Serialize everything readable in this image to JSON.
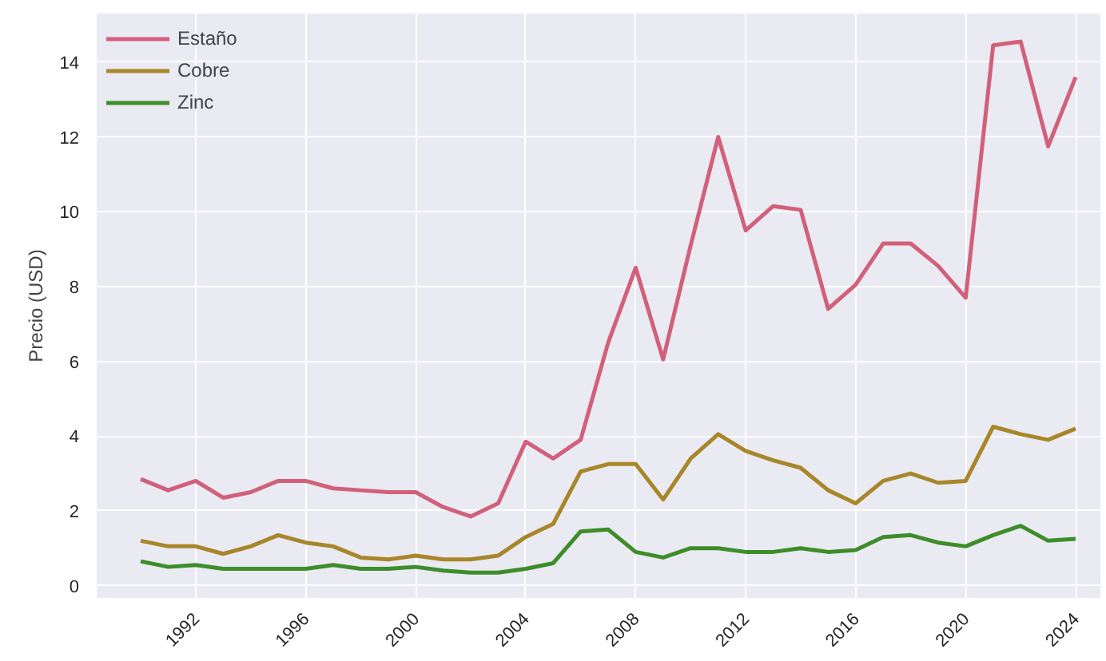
{
  "chart_data": {
    "type": "line",
    "ylabel": "Precio (USD)",
    "x": [
      1990,
      1991,
      1992,
      1993,
      1994,
      1995,
      1996,
      1997,
      1998,
      1999,
      2000,
      2001,
      2002,
      2003,
      2004,
      2005,
      2006,
      2007,
      2008,
      2009,
      2010,
      2011,
      2012,
      2013,
      2014,
      2015,
      2016,
      2017,
      2018,
      2019,
      2020,
      2021,
      2022,
      2023,
      2024
    ],
    "series": [
      {
        "name": "Estaño",
        "color": "#d1607a",
        "values": [
          2.85,
          2.55,
          2.8,
          2.35,
          2.5,
          2.8,
          2.8,
          2.6,
          2.55,
          2.5,
          2.5,
          2.1,
          1.85,
          2.2,
          3.85,
          3.4,
          3.9,
          6.5,
          8.5,
          6.05,
          9.1,
          12.0,
          9.5,
          10.15,
          10.05,
          7.4,
          8.05,
          9.15,
          9.15,
          8.55,
          7.7,
          14.45,
          14.55,
          11.75,
          13.6
        ]
      },
      {
        "name": "Cobre",
        "color": "#a8862a",
        "values": [
          1.2,
          1.05,
          1.05,
          0.85,
          1.05,
          1.35,
          1.15,
          1.05,
          0.75,
          0.7,
          0.8,
          0.7,
          0.7,
          0.8,
          1.3,
          1.65,
          3.05,
          3.25,
          3.25,
          2.3,
          3.4,
          4.05,
          3.6,
          3.35,
          3.15,
          2.55,
          2.2,
          2.8,
          3.0,
          2.75,
          2.8,
          4.25,
          4.05,
          3.9,
          4.2
        ]
      },
      {
        "name": "Zinc",
        "color": "#3d8d2a",
        "values": [
          0.65,
          0.5,
          0.55,
          0.45,
          0.45,
          0.45,
          0.45,
          0.55,
          0.45,
          0.45,
          0.5,
          0.4,
          0.35,
          0.35,
          0.45,
          0.6,
          1.45,
          1.5,
          0.9,
          0.75,
          1.0,
          1.0,
          0.9,
          0.9,
          1.0,
          0.9,
          0.95,
          1.3,
          1.35,
          1.15,
          1.05,
          1.35,
          1.6,
          1.2,
          1.25
        ]
      }
    ],
    "xlim": [
      1988.4,
      2024.9
    ],
    "ylim": [
      -0.33,
      15.3
    ],
    "xticks": [
      1992,
      1996,
      2000,
      2004,
      2008,
      2012,
      2016,
      2020,
      2024
    ],
    "yticks": [
      0,
      2,
      4,
      6,
      8,
      10,
      12,
      14
    ],
    "grid": true,
    "legend": "top left",
    "marker": "none",
    "line_style": "solid"
  }
}
